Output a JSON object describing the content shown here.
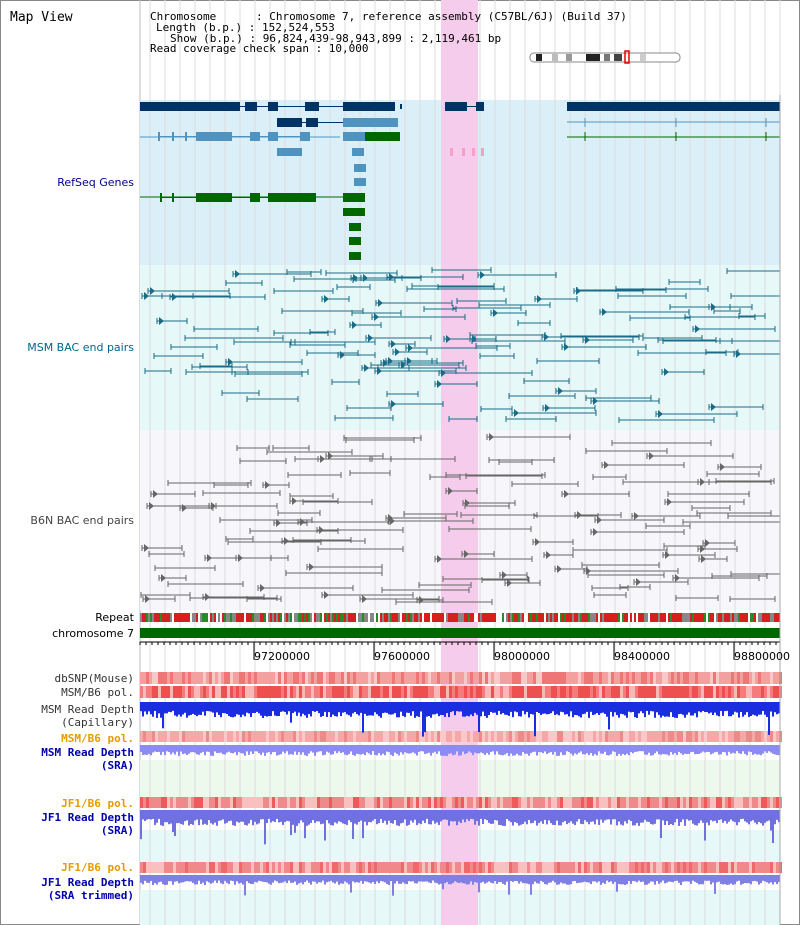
{
  "view_title": "Map View",
  "info": {
    "chromosome": "Chromosome      : Chromosome 7, reference assembly (C57BL/6J) (Build 37)",
    "length": "Length (b.p.) : 152,524,553",
    "show": "Show (b.p.) : 96,824,439-98,943,899 : 2,119,461 bp",
    "coverage": "Read coverage check span : 10,000"
  },
  "tracks": {
    "refseq": "RefSeq Genes",
    "msm_bac": "MSM BAC end pairs",
    "b6n_bac": "B6N BAC end pairs",
    "repeat": "Repeat",
    "chromosome": "chromosome 7",
    "dbsnp": "dbSNP(Mouse)",
    "msm_b6_pol_1": "MSM/B6 pol.",
    "msm_depth_cap_1": "MSM Read Depth",
    "msm_depth_cap_2": "(Capillary)",
    "msm_b6_pol_2": "MSM/B6 pol.",
    "msm_depth_sra_1": "MSM Read Depth",
    "msm_depth_sra_2": "(SRA)",
    "jf1_pol_1": "JF1/B6 pol.",
    "jf1_depth_1": "JF1 Read Depth",
    "jf1_depth_1b": "(SRA)",
    "jf1_pol_2": "JF1/B6 pol.",
    "jf1_depth_2": "JF1 Read Depth",
    "jf1_depth_2b": "(SRA trimmed)"
  },
  "axis_ticks": [
    "97200000",
    "97600000",
    "98000000",
    "98400000",
    "98800000"
  ],
  "colors": {
    "refseq_bg": "#dbeff9",
    "msm_bg": "#e6f8f8",
    "b6n_bg": "#f6f6fb",
    "highlight": "#f8d8f0",
    "navy": "#003366",
    "steel": "#4f94c0",
    "green": "#006600"
  }
}
